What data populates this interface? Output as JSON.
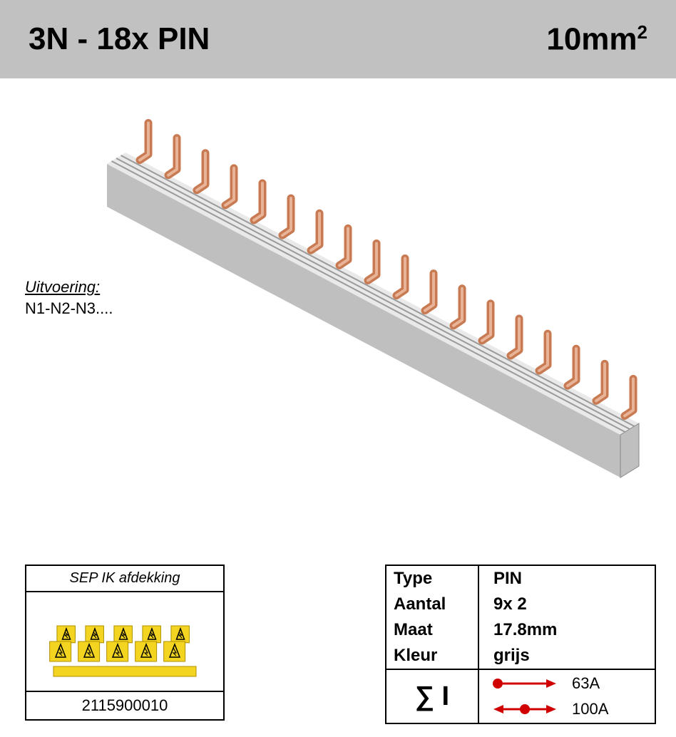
{
  "header": {
    "left": "3N - 18x PIN",
    "right_base": "10mm",
    "right_sup": "2"
  },
  "uitvoering": {
    "label": "Uitvoering:",
    "value": "N1-N2-N3...."
  },
  "accessory_box": {
    "title": "SEP IK afdekking",
    "code": "2115900010",
    "cover_color": "#f3d421",
    "cover_symbol_color": "#000000",
    "cover_count": 10
  },
  "spec_table": {
    "rows": [
      {
        "label": "Type",
        "value": "PIN"
      },
      {
        "label": "Aantal",
        "value": "9x 2"
      },
      {
        "label": "Maat",
        "value": "17.8mm"
      },
      {
        "label": "Kleur",
        "value": "grijs"
      }
    ],
    "sigma_label": "∑ I",
    "ratings": [
      {
        "kind": "single",
        "value": "63A",
        "color": "#d10000"
      },
      {
        "kind": "double",
        "value": "100A",
        "color": "#d10000"
      }
    ]
  },
  "product_illustration": {
    "rail_color_top": "#e9e9e9",
    "rail_color_side": "#bfbfbf",
    "rail_groove_color": "#9a9a9a",
    "pin_color": "#c87a52",
    "pin_highlight": "#e8b397",
    "pin_count": 18,
    "background": "#ffffff"
  },
  "colors": {
    "header_bg": "#c1c1c1",
    "text": "#000000",
    "border": "#000000"
  }
}
